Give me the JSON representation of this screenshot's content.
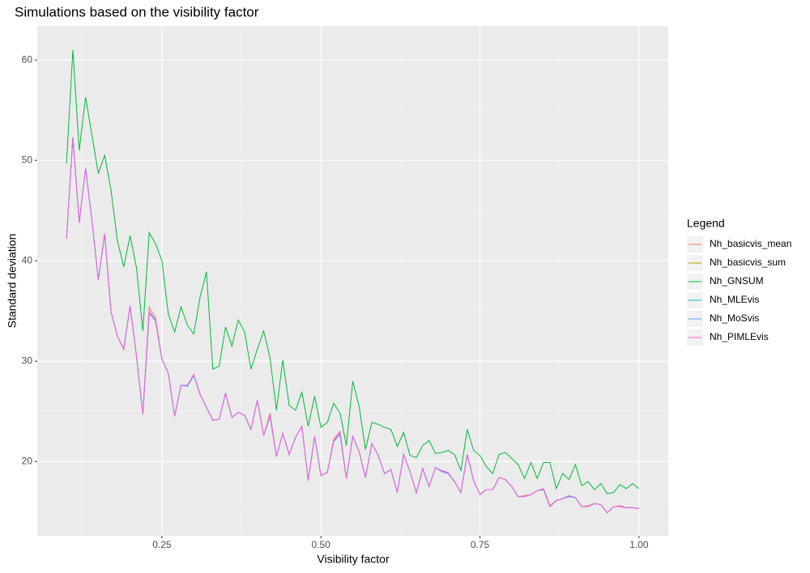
{
  "chart_data": {
    "type": "line",
    "title": "Simulations based on the visibility factor",
    "x_label": "Visibility factor",
    "y_label": "Standard deviation",
    "legend_title": "Legend",
    "legend_position": "right",
    "grid": true,
    "xlim": [
      0.054,
      1.046
    ],
    "ylim": [
      12.6,
      63.4
    ],
    "xticks": [
      {
        "value": 0.25,
        "label": "0.25"
      },
      {
        "value": 0.5,
        "label": "0.50"
      },
      {
        "value": 0.75,
        "label": "0.75"
      },
      {
        "value": 1,
        "label": "1.00"
      }
    ],
    "yticks": [
      20,
      30,
      40,
      50,
      60
    ],
    "x": [
      0.1,
      0.11,
      0.12,
      0.13,
      0.14,
      0.15,
      0.16,
      0.17,
      0.18,
      0.19,
      0.2,
      0.21,
      0.22,
      0.23,
      0.24,
      0.25,
      0.26,
      0.27,
      0.28,
      0.29,
      0.3,
      0.31,
      0.32,
      0.33,
      0.34,
      0.35,
      0.36,
      0.37,
      0.38,
      0.39,
      0.4,
      0.41,
      0.42,
      0.43,
      0.44,
      0.45,
      0.46,
      0.47,
      0.48,
      0.49,
      0.5,
      0.51,
      0.52,
      0.53,
      0.54,
      0.55,
      0.56,
      0.57,
      0.58,
      0.59,
      0.6,
      0.61,
      0.62,
      0.63,
      0.64,
      0.65,
      0.66,
      0.67,
      0.68,
      0.69,
      0.7,
      0.71,
      0.72,
      0.73,
      0.74,
      0.75,
      0.76,
      0.77,
      0.78,
      0.79,
      0.8,
      0.81,
      0.82,
      0.83,
      0.84,
      0.85,
      0.86,
      0.87,
      0.88,
      0.89,
      0.9,
      0.91,
      0.92,
      0.93,
      0.94,
      0.95,
      0.96,
      0.97,
      0.98,
      0.99,
      1.0
    ],
    "series": [
      {
        "name": "Nh_basicvis_mean",
        "color": "#F8766D",
        "values": [
          42.2,
          52.3,
          43.8,
          49.2,
          44,
          38.1,
          42.7,
          34.9,
          32.5,
          31.2,
          35.5,
          30.5,
          24.7,
          35.4,
          34.3,
          30.2,
          28.8,
          24.5,
          27.6,
          27.5,
          28.6,
          26.7,
          25.4,
          24.1,
          24.2,
          26.8,
          24.4,
          24.9,
          24.6,
          23.2,
          26.1,
          22.6,
          24.8,
          20.5,
          22.8,
          20.7,
          22.4,
          23.5,
          18.1,
          22.5,
          18.6,
          18.9,
          22.2,
          23.0,
          18.3,
          22.5,
          21,
          18.4,
          21.8,
          20.6,
          18.8,
          19.2,
          16.9,
          20.7,
          19,
          16.9,
          19.3,
          17.5,
          19.4,
          19.1,
          18.9,
          18,
          16.9,
          20.7,
          18.1,
          16.7,
          17.2,
          17.2,
          18.4,
          18.2,
          17.5,
          16.5,
          16.6,
          16.7,
          17.1,
          17.3,
          15.6,
          16.1,
          16.3,
          16.6,
          16.4,
          15.5,
          15.6,
          15.8,
          15.7,
          14.9,
          15.5,
          15.6,
          15.4,
          15.4,
          15.3
        ]
      },
      {
        "name": "Nh_basicvis_sum",
        "color": "#B79F00",
        "values": [
          42.2,
          52.3,
          43.8,
          49.2,
          44,
          38.1,
          42.7,
          34.9,
          32.5,
          31.2,
          35.5,
          30.5,
          24.7,
          34.8,
          34,
          30.2,
          28.8,
          24.5,
          27.6,
          27.5,
          28.6,
          26.7,
          25.4,
          24.1,
          24.2,
          26.8,
          24.4,
          24.9,
          24.6,
          23.2,
          26.1,
          22.6,
          24.5,
          20.5,
          22.8,
          20.7,
          22.4,
          23.5,
          18.1,
          22.5,
          18.6,
          18.9,
          22,
          22.7,
          18.3,
          22.5,
          21,
          18.4,
          21.8,
          20.6,
          18.8,
          19.2,
          16.9,
          20.7,
          19,
          16.9,
          19.3,
          17.5,
          19.4,
          19,
          18.8,
          18,
          16.9,
          20.7,
          18.1,
          16.7,
          17.2,
          17.2,
          18.4,
          18.2,
          17.5,
          16.5,
          16.5,
          16.7,
          17.1,
          17.2,
          15.5,
          16.1,
          16.3,
          16.5,
          16.4,
          15.5,
          15.5,
          15.8,
          15.7,
          14.9,
          15.5,
          15.5,
          15.4,
          15.4,
          15.3
        ]
      },
      {
        "name": "Nh_GNSUM",
        "color": "#00BA38",
        "values": [
          49.7,
          61,
          51,
          56.3,
          52.5,
          48.7,
          50.5,
          47,
          42,
          39.4,
          42.5,
          39.3,
          33,
          42.8,
          41.7,
          40,
          34.7,
          32.9,
          35.4,
          33.6,
          32.7,
          36.4,
          38.9,
          29.2,
          29.5,
          33.4,
          31.5,
          34.1,
          32.9,
          29.2,
          31.2,
          33,
          30.3,
          25.1,
          30.1,
          25.6,
          25.1,
          26.9,
          23.5,
          26.5,
          23.4,
          23.9,
          25.8,
          24.8,
          21.6,
          28,
          25.5,
          21.2,
          23.9,
          23.7,
          23.4,
          23.2,
          21.5,
          22.9,
          20.6,
          20.4,
          21.6,
          22.1,
          20.8,
          20.9,
          21.1,
          20.7,
          19.1,
          23.2,
          21.1,
          20.6,
          19.5,
          18.8,
          20.7,
          20.9,
          20.3,
          19.7,
          18.3,
          19.9,
          18.3,
          19.9,
          19.9,
          17.3,
          18.8,
          18.2,
          19.7,
          17.6,
          18,
          17.2,
          17.8,
          16.8,
          16.9,
          17.7,
          17.3,
          17.8,
          17.3
        ]
      },
      {
        "name": "Nh_MLEvis",
        "color": "#00BFC4",
        "values": [
          42.2,
          52.3,
          43.8,
          49.2,
          44,
          38.1,
          42.7,
          34.9,
          32.5,
          31.2,
          35.5,
          30.5,
          24.7,
          34.8,
          34,
          30.2,
          28.8,
          24.5,
          27.6,
          27.5,
          28.6,
          26.7,
          25.4,
          24.1,
          24.2,
          26.8,
          24.4,
          24.9,
          24.6,
          23.2,
          26.1,
          22.6,
          24.5,
          20.5,
          22.8,
          20.7,
          22.4,
          23.5,
          18.1,
          22.5,
          18.6,
          18.9,
          22,
          22.7,
          18.3,
          22.5,
          21,
          18.4,
          21.8,
          20.6,
          18.8,
          19.2,
          16.9,
          20.7,
          19,
          16.9,
          19.3,
          17.5,
          19.4,
          19,
          18.8,
          18,
          16.9,
          20.7,
          18.1,
          16.7,
          17.2,
          17.2,
          18.4,
          18.2,
          17.5,
          16.5,
          16.5,
          16.7,
          17.1,
          17.2,
          15.5,
          16.1,
          16.3,
          16.5,
          16.4,
          15.5,
          15.5,
          15.8,
          15.7,
          14.9,
          15.5,
          15.5,
          15.4,
          15.4,
          15.3
        ]
      },
      {
        "name": "Nh_MoSvis",
        "color": "#619CFF",
        "values": [
          42.2,
          52.3,
          43.8,
          49.2,
          44,
          38.1,
          42.7,
          34.9,
          32.5,
          31.2,
          35.5,
          30.5,
          24.7,
          34.8,
          34,
          30.2,
          28.8,
          24.5,
          27.6,
          27.5,
          28.6,
          26.7,
          25.4,
          24.1,
          24.2,
          26.8,
          24.4,
          24.9,
          24.6,
          23.2,
          26.1,
          22.6,
          24.5,
          20.5,
          22.8,
          20.7,
          22.4,
          23.5,
          18.1,
          22.5,
          18.6,
          18.9,
          22,
          22.7,
          18.3,
          22.5,
          21,
          18.4,
          21.8,
          20.6,
          18.8,
          19.2,
          16.9,
          20.7,
          19,
          16.9,
          19.3,
          17.5,
          19.4,
          19,
          18.8,
          18,
          16.9,
          20.7,
          18.1,
          16.7,
          17.2,
          17.2,
          18.4,
          18.2,
          17.5,
          16.5,
          16.5,
          16.7,
          17.1,
          17.2,
          15.5,
          16.1,
          16.3,
          16.5,
          16.4,
          15.5,
          15.5,
          15.8,
          15.7,
          14.9,
          15.5,
          15.5,
          15.4,
          15.4,
          15.3
        ]
      },
      {
        "name": "Nh_PIMLEvis",
        "color": "#F564E3",
        "values": [
          42.2,
          52.3,
          43.8,
          49.2,
          44,
          38.1,
          42.7,
          34.9,
          32.5,
          31.2,
          35.5,
          30.5,
          24.7,
          35.0,
          34.1,
          30.2,
          28.8,
          24.5,
          27.6,
          27.6,
          28.7,
          26.7,
          25.4,
          24.1,
          24.2,
          26.8,
          24.4,
          24.9,
          24.6,
          23.2,
          26.1,
          22.6,
          24.6,
          20.5,
          22.8,
          20.7,
          22.4,
          23.5,
          18.1,
          22.5,
          18.6,
          18.9,
          22.1,
          22.9,
          18.3,
          22.5,
          21,
          18.4,
          21.8,
          20.6,
          18.8,
          19.2,
          16.9,
          20.7,
          19,
          16.9,
          19.3,
          17.5,
          19.4,
          19.1,
          18.9,
          18,
          16.9,
          20.7,
          18.1,
          16.7,
          17.2,
          17.2,
          18.4,
          18.2,
          17.5,
          16.5,
          16.5,
          16.7,
          17.1,
          17.3,
          15.5,
          16.1,
          16.3,
          16.6,
          16.4,
          15.5,
          15.5,
          15.8,
          15.7,
          14.9,
          15.5,
          15.5,
          15.4,
          15.4,
          15.3
        ]
      }
    ]
  }
}
